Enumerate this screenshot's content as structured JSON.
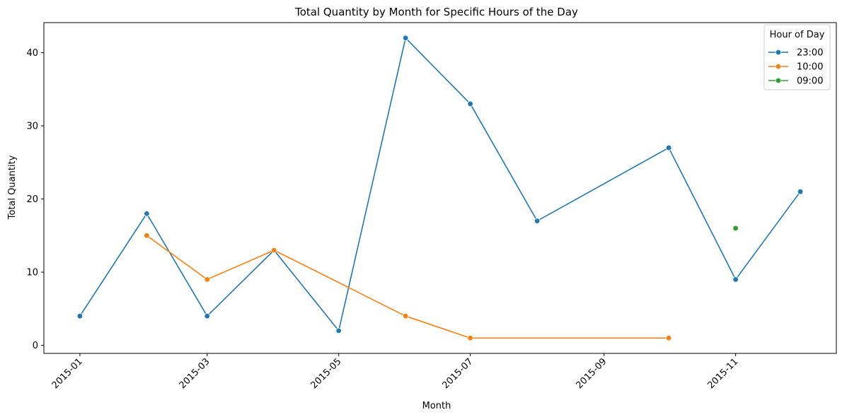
{
  "chart_data": {
    "type": "line",
    "title": "Total Quantity by Month for Specific Hours of the Day",
    "xlabel": "Month",
    "ylabel": "Total Quantity",
    "x_months": [
      "2015-01",
      "2015-02",
      "2015-03",
      "2015-04",
      "2015-05",
      "2015-06",
      "2015-07",
      "2015-08",
      "2015-09",
      "2015-10",
      "2015-11",
      "2015-12"
    ],
    "x_ticks": [
      "2015-01",
      "2015-03",
      "2015-05",
      "2015-07",
      "2015-09",
      "2015-11"
    ],
    "y_ticks": [
      0,
      10,
      20,
      30,
      40
    ],
    "ylim": [
      -1.1,
      44.1
    ],
    "grid": false,
    "legend_title": "Hour of Day",
    "legend_position": "top-right",
    "series": [
      {
        "name": "23:00",
        "color": "#1f77b4",
        "points": [
          {
            "x": "2015-01",
            "y": 4
          },
          {
            "x": "2015-02",
            "y": 18
          },
          {
            "x": "2015-03",
            "y": 4
          },
          {
            "x": "2015-04",
            "y": 13
          },
          {
            "x": "2015-05",
            "y": 2
          },
          {
            "x": "2015-06",
            "y": 42
          },
          {
            "x": "2015-07",
            "y": 33
          },
          {
            "x": "2015-08",
            "y": 17
          },
          {
            "x": "2015-10",
            "y": 27
          },
          {
            "x": "2015-11",
            "y": 9
          },
          {
            "x": "2015-12",
            "y": 21
          }
        ]
      },
      {
        "name": "10:00",
        "color": "#ff7f0e",
        "points": [
          {
            "x": "2015-02",
            "y": 15
          },
          {
            "x": "2015-03",
            "y": 9
          },
          {
            "x": "2015-04",
            "y": 13
          },
          {
            "x": "2015-06",
            "y": 4
          },
          {
            "x": "2015-07",
            "y": 1
          },
          {
            "x": "2015-10",
            "y": 1
          }
        ]
      },
      {
        "name": "09:00",
        "color": "#2ca02c",
        "points": [
          {
            "x": "2015-11",
            "y": 16
          }
        ]
      }
    ]
  }
}
